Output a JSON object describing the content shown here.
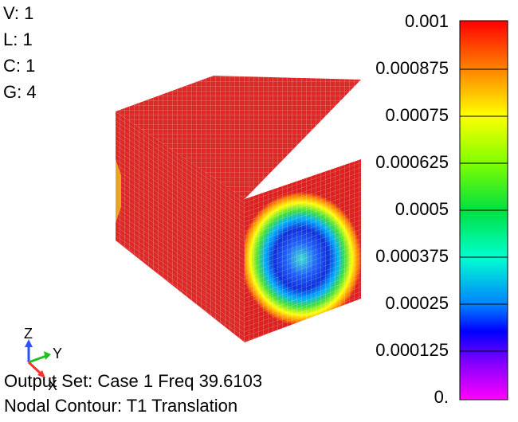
{
  "view_info": {
    "lines": [
      "V: 1",
      "L: 1",
      "C: 1",
      "G: 4"
    ]
  },
  "legend": {
    "labels": [
      "0.001",
      "0.000875",
      "0.00075",
      "0.000625",
      "0.0005",
      "0.000375",
      "0.00025",
      "0.000125",
      "0."
    ]
  },
  "triad": {
    "labels": [
      "Z",
      "Y",
      "X"
    ]
  },
  "status": {
    "output_set": "Output Set: Case 1 Freq 39.6103",
    "contour": "Nodal Contour: T1 Translation"
  }
}
